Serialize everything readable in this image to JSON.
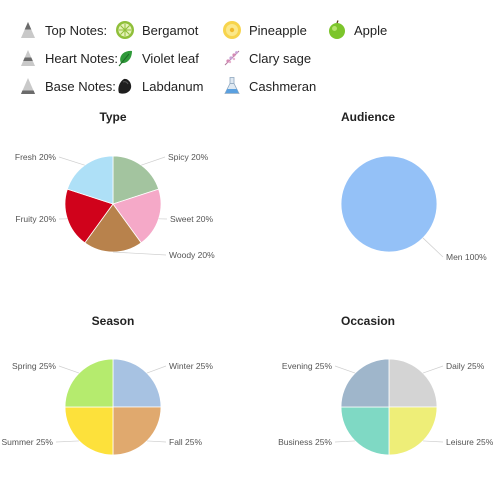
{
  "notes": {
    "top": {
      "label": "Top Notes:",
      "items": [
        {
          "name": "Bergamot",
          "icon": "bergamot-icon"
        },
        {
          "name": "Pineapple",
          "icon": "pineapple-icon"
        },
        {
          "name": "Apple",
          "icon": "apple-icon"
        }
      ]
    },
    "heart": {
      "label": "Heart Notes:",
      "items": [
        {
          "name": "Violet leaf",
          "icon": "violet-leaf-icon"
        },
        {
          "name": "Clary sage",
          "icon": "clary-sage-icon"
        }
      ]
    },
    "base": {
      "label": "Base Notes:",
      "items": [
        {
          "name": "Labdanum",
          "icon": "labdanum-icon"
        },
        {
          "name": "Cashmeran",
          "icon": "cashmeran-icon"
        }
      ]
    }
  },
  "chart_data": [
    {
      "type": "pie",
      "title": "Type",
      "slices": [
        {
          "label": "Spicy 20%",
          "value": 20,
          "color": "#a3c49f"
        },
        {
          "label": "Sweet 20%",
          "value": 20,
          "color": "#f5a9c8"
        },
        {
          "label": "Woody 20%",
          "value": 20,
          "color": "#b8824c"
        },
        {
          "label": "Fruity 20%",
          "value": 20,
          "color": "#d0021b"
        },
        {
          "label": "Fresh 20%",
          "value": 20,
          "color": "#aee0f7"
        }
      ]
    },
    {
      "type": "pie",
      "title": "Audience",
      "slices": [
        {
          "label": "Men 100%",
          "value": 100,
          "color": "#94c1f7"
        }
      ]
    },
    {
      "type": "pie",
      "title": "Season",
      "slices": [
        {
          "label": "Winter 25%",
          "value": 25,
          "color": "#a7c2e2"
        },
        {
          "label": "Fall 25%",
          "value": 25,
          "color": "#e0a96e"
        },
        {
          "label": "Summer 25%",
          "value": 25,
          "color": "#fde13b"
        },
        {
          "label": "Spring 25%",
          "value": 25,
          "color": "#b5eb6e"
        }
      ]
    },
    {
      "type": "pie",
      "title": "Occasion",
      "slices": [
        {
          "label": "Daily 25%",
          "value": 25,
          "color": "#d4d4d4"
        },
        {
          "label": "Leisure 25%",
          "value": 25,
          "color": "#eeee78"
        },
        {
          "label": "Business 25%",
          "value": 25,
          "color": "#7fd9c4"
        },
        {
          "label": "Evening 25%",
          "value": 25,
          "color": "#9fb6cb"
        }
      ]
    }
  ]
}
